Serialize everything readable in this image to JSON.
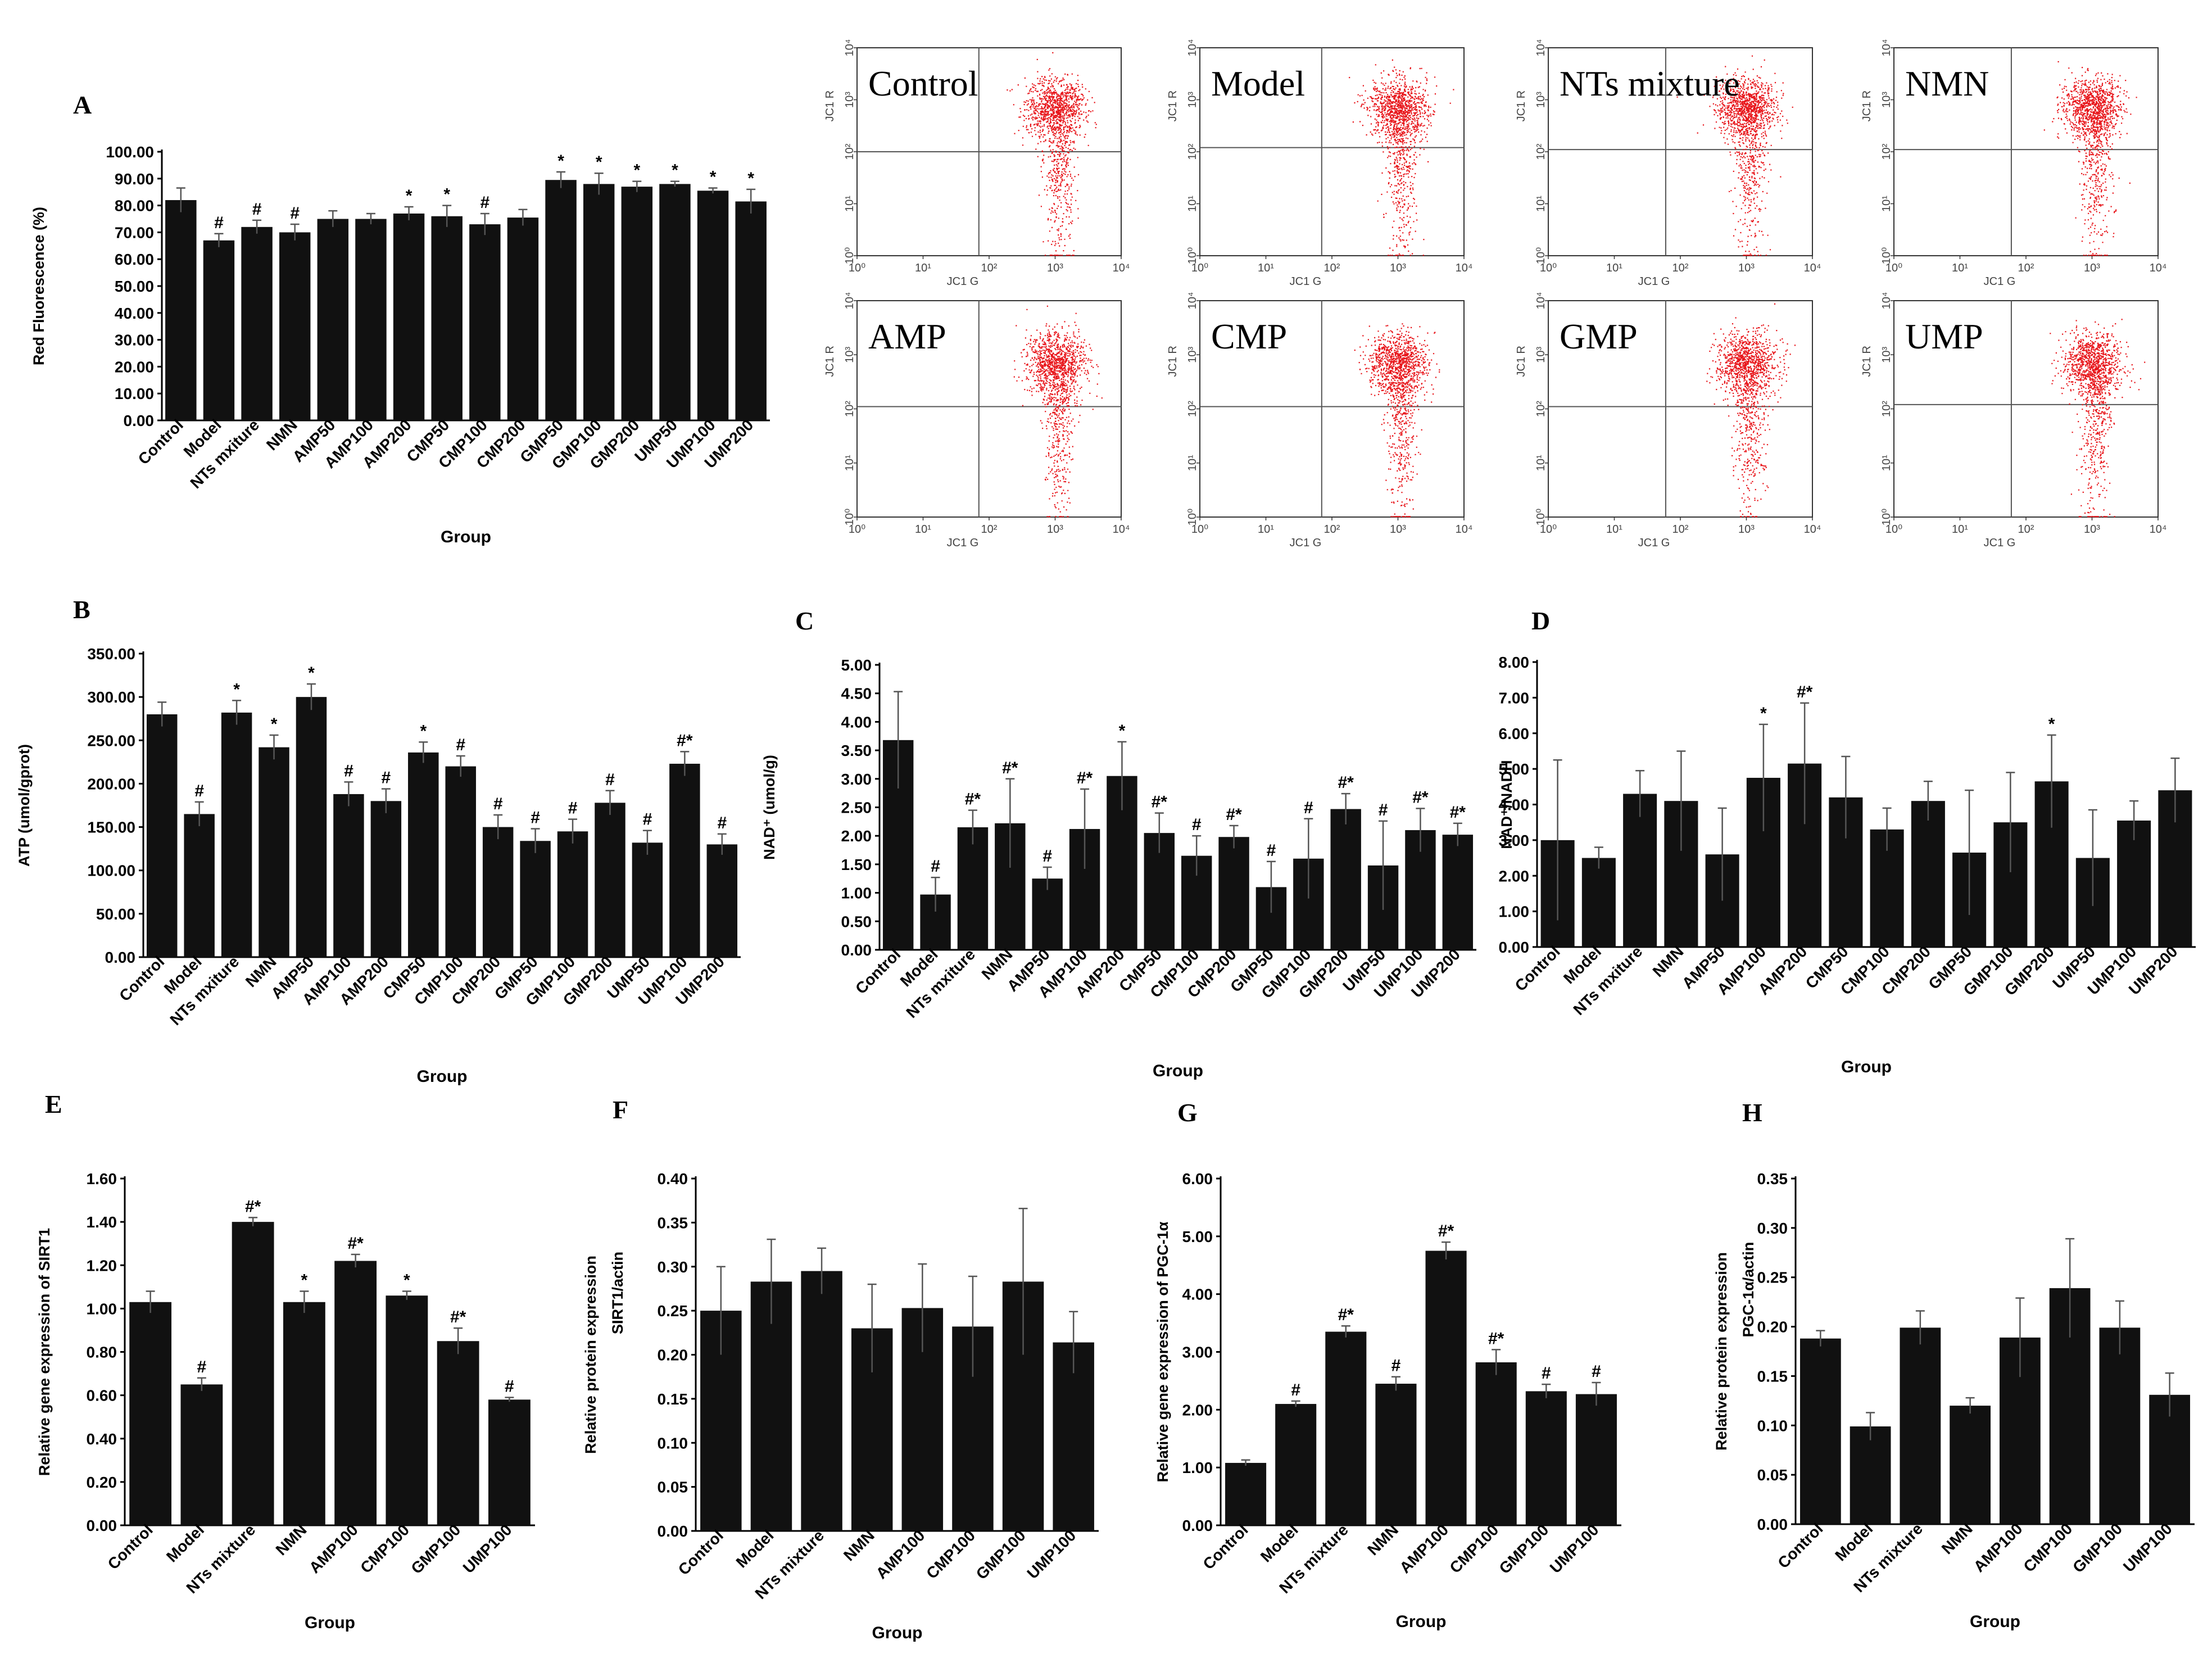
{
  "bar_panels": [
    "A",
    "B",
    "C",
    "D",
    "E",
    "F",
    "G",
    "H"
  ],
  "chart_data": [
    {
      "panel": "A",
      "type": "bar",
      "title": "",
      "xlabel": "Group",
      "ylabel": "Red Fluorescence (%)",
      "ylim": [
        0,
        100
      ],
      "yticks": [
        "0.00",
        "10.00",
        "20.00",
        "30.00",
        "40.00",
        "50.00",
        "60.00",
        "70.00",
        "80.00",
        "90.00",
        "100.00"
      ],
      "categories": [
        "Control",
        "Model",
        "NTs mxiture",
        "NMN",
        "AMP50",
        "AMP100",
        "AMP200",
        "CMP50",
        "CMP100",
        "CMP200",
        "GMP50",
        "GMP100",
        "GMP200",
        "UMP50",
        "UMP100",
        "UMP200"
      ],
      "values": [
        82,
        67,
        72,
        70,
        75,
        75,
        77,
        76,
        73,
        75.5,
        89.5,
        88,
        87,
        88,
        85.5,
        81.5
      ],
      "errors": [
        4.5,
        2.5,
        2.5,
        3.0,
        3.0,
        2.0,
        2.5,
        4.0,
        4.0,
        3.0,
        3.0,
        4.0,
        2.0,
        1.0,
        1.0,
        4.5
      ],
      "sig": [
        "",
        "#",
        "#",
        "#",
        "",
        "",
        "*",
        "*",
        "#",
        "",
        "*",
        "*",
        "*",
        "*",
        "*",
        "*"
      ],
      "bar_color": "#111111"
    },
    {
      "panel": "B",
      "type": "bar",
      "title": "",
      "xlabel": "Group",
      "ylabel": "ATP (umol/gprot)",
      "ylim": [
        0,
        350
      ],
      "yticks": [
        "0.00",
        "50.00",
        "100.00",
        "150.00",
        "200.00",
        "250.00",
        "300.00",
        "350.00"
      ],
      "categories": [
        "Control",
        "Model",
        "NTs mxiture",
        "NMN",
        "AMP50",
        "AMP100",
        "AMP200",
        "CMP50",
        "CMP100",
        "CMP200",
        "GMP50",
        "GMP100",
        "GMP200",
        "UMP50",
        "UMP100",
        "UMP200"
      ],
      "values": [
        280,
        165,
        282,
        242,
        300,
        188,
        180,
        236,
        220,
        150,
        134,
        145,
        178,
        132,
        223,
        130
      ],
      "errors": [
        14,
        14,
        14,
        14,
        15,
        14,
        14,
        12,
        12,
        14,
        14,
        14,
        14,
        14,
        14,
        12
      ],
      "sig": [
        "",
        "#",
        "*",
        "*",
        "*",
        "#",
        "#",
        "*",
        "#",
        "#",
        "#",
        "#",
        "#",
        "#",
        "#*",
        "#"
      ],
      "bar_color": "#111111"
    },
    {
      "panel": "C",
      "type": "bar",
      "title": "",
      "xlabel": "Group",
      "ylabel": "NAD⁺ (umol/g)",
      "ylim": [
        0,
        5
      ],
      "yticks": [
        "0.00",
        "0.50",
        "1.00",
        "1.50",
        "2.00",
        "2.50",
        "3.00",
        "3.50",
        "4.00",
        "4.50",
        "5.00"
      ],
      "categories": [
        "Control",
        "Model",
        "NTs mxiture",
        "NMN",
        "AMP50",
        "AMP100",
        "AMP200",
        "CMP50",
        "CMP100",
        "CMP200",
        "GMP50",
        "GMP100",
        "GMP200",
        "UMP50",
        "UMP100",
        "UMP200"
      ],
      "values": [
        3.68,
        0.97,
        2.15,
        2.22,
        1.25,
        2.12,
        3.05,
        2.05,
        1.65,
        1.98,
        1.1,
        1.6,
        2.47,
        1.48,
        2.1,
        2.02
      ],
      "errors": [
        0.85,
        0.3,
        0.3,
        0.78,
        0.2,
        0.7,
        0.6,
        0.35,
        0.35,
        0.2,
        0.45,
        0.7,
        0.27,
        0.78,
        0.38,
        0.2
      ],
      "sig": [
        "",
        "#",
        "#*",
        "#*",
        "#",
        "#*",
        "*",
        "#*",
        "#",
        "#*",
        "#",
        "#",
        "#*",
        "#",
        "#*",
        "#*"
      ],
      "bar_color": "#111111"
    },
    {
      "panel": "D",
      "type": "bar",
      "title": "",
      "xlabel": "Group",
      "ylabel": "NAD⁺/NADH",
      "ylim": [
        0,
        8
      ],
      "yticks": [
        "0.00",
        "1.00",
        "2.00",
        "3.00",
        "4.00",
        "5.00",
        "6.00",
        "7.00",
        "8.00"
      ],
      "categories": [
        "Control",
        "Model",
        "NTs mxiture",
        "NMN",
        "AMP50",
        "AMP100",
        "AMP200",
        "CMP50",
        "CMP100",
        "CMP200",
        "GMP50",
        "GMP100",
        "GMP200",
        "UMP50",
        "UMP100",
        "UMP200"
      ],
      "values": [
        3.0,
        2.5,
        4.3,
        4.1,
        2.6,
        4.75,
        5.15,
        4.2,
        3.3,
        4.1,
        2.65,
        3.5,
        4.65,
        2.5,
        3.55,
        4.4
      ],
      "errors": [
        2.25,
        0.3,
        0.65,
        1.4,
        1.3,
        1.5,
        1.7,
        1.15,
        0.6,
        0.55,
        1.75,
        1.4,
        1.3,
        1.35,
        0.55,
        0.9
      ],
      "sig": [
        "",
        "",
        "",
        "",
        "",
        "*",
        "#*",
        "",
        "",
        "",
        "",
        "",
        "*",
        "",
        "",
        ""
      ],
      "bar_color": "#111111"
    },
    {
      "panel": "E",
      "type": "bar",
      "title": "",
      "xlabel": "Group",
      "ylabel": "Relative gene expression of SIRT1",
      "ylim": [
        0,
        1.6
      ],
      "yticks": [
        "0.00",
        "0.20",
        "0.40",
        "0.60",
        "0.80",
        "1.00",
        "1.20",
        "1.40",
        "1.60"
      ],
      "categories": [
        "Control",
        "Model",
        "NTs mixture",
        "NMN",
        "AMP100",
        "CMP100",
        "GMP100",
        "UMP100"
      ],
      "values": [
        1.03,
        0.65,
        1.4,
        1.03,
        1.22,
        1.06,
        0.85,
        0.58
      ],
      "errors": [
        0.05,
        0.03,
        0.02,
        0.05,
        0.03,
        0.02,
        0.06,
        0.01
      ],
      "sig": [
        "",
        "#",
        "#*",
        "*",
        "#*",
        "*",
        "#*",
        "#"
      ],
      "bar_color": "#111111"
    },
    {
      "panel": "F",
      "type": "bar",
      "title": "",
      "xlabel": "Group",
      "ylabel": "Relative protein expression",
      "ylabel2": "SIRT1/actin",
      "ylim": [
        0,
        0.4
      ],
      "yticks": [
        "0.00",
        "0.05",
        "0.10",
        "0.15",
        "0.20",
        "0.25",
        "0.30",
        "0.35",
        "0.40"
      ],
      "categories": [
        "Control",
        "Model",
        "NTs mixture",
        "NMN",
        "AMP100",
        "CMP100",
        "GMP100",
        "UMP100"
      ],
      "values": [
        0.25,
        0.283,
        0.295,
        0.23,
        0.253,
        0.232,
        0.283,
        0.214
      ],
      "errors": [
        0.05,
        0.048,
        0.026,
        0.05,
        0.05,
        0.057,
        0.083,
        0.035
      ],
      "sig": [
        "",
        "",
        "",
        "",
        "",
        "",
        "",
        ""
      ],
      "bar_color": "#111111"
    },
    {
      "panel": "G",
      "type": "bar",
      "title": "",
      "xlabel": "Group",
      "ylabel": "Relative gene expression of PGC-1α",
      "ylim": [
        0,
        6
      ],
      "yticks": [
        "0.00",
        "1.00",
        "2.00",
        "3.00",
        "4.00",
        "5.00",
        "6.00"
      ],
      "categories": [
        "Control",
        "Model",
        "NTs mixture",
        "NMN",
        "AMP100",
        "CMP100",
        "GMP100",
        "UMP100"
      ],
      "values": [
        1.08,
        2.1,
        3.35,
        2.45,
        4.75,
        2.82,
        2.32,
        2.27
      ],
      "errors": [
        0.05,
        0.05,
        0.1,
        0.12,
        0.15,
        0.22,
        0.12,
        0.2
      ],
      "sig": [
        "",
        "#",
        "#*",
        "#",
        "#*",
        "#*",
        "#",
        "#"
      ],
      "bar_color": "#111111"
    },
    {
      "panel": "H",
      "type": "bar",
      "title": "",
      "xlabel": "Group",
      "ylabel": "Relative protein expression",
      "ylabel2": "PGC-1α/actin",
      "ylim": [
        0,
        0.35
      ],
      "yticks": [
        "0.00",
        "0.05",
        "0.10",
        "0.15",
        "0.20",
        "0.25",
        "0.30",
        "0.35"
      ],
      "categories": [
        "Control",
        "Model",
        "NTs mixture",
        "NMN",
        "AMP100",
        "CMP100",
        "GMP100",
        "UMP100"
      ],
      "values": [
        0.188,
        0.099,
        0.199,
        0.12,
        0.189,
        0.239,
        0.199,
        0.131
      ],
      "errors": [
        0.008,
        0.014,
        0.017,
        0.008,
        0.04,
        0.05,
        0.027,
        0.022
      ],
      "sig": [
        "",
        "",
        "",
        "",
        "",
        "",
        "",
        ""
      ],
      "bar_color": "#111111"
    },
    {
      "panel": "A",
      "type": "scatter",
      "subtype": "flow-cytometry",
      "xlabel": "JC1 G",
      "ylabel": "JC1 R",
      "xlim": [
        1,
        10000
      ],
      "ylim": [
        1,
        10000
      ],
      "log_scale": true,
      "tick_labels": [
        "10⁰",
        "10¹",
        "10²",
        "10³",
        "10⁴"
      ],
      "plots": [
        {
          "name": "Control",
          "gate_x": 70,
          "gate_y": 100
        },
        {
          "name": "Model",
          "gate_x": 70,
          "gate_y": 120
        },
        {
          "name": "NTs mixture",
          "gate_x": 60,
          "gate_y": 110
        },
        {
          "name": "NMN",
          "gate_x": 60,
          "gate_y": 110
        },
        {
          "name": "AMP",
          "gate_x": 70,
          "gate_y": 110
        },
        {
          "name": "CMP",
          "gate_x": 70,
          "gate_y": 110
        },
        {
          "name": "GMP",
          "gate_x": 60,
          "gate_y": 110
        },
        {
          "name": "UMP",
          "gate_x": 60,
          "gate_y": 120
        }
      ],
      "dot_color": "#e8161b"
    }
  ]
}
